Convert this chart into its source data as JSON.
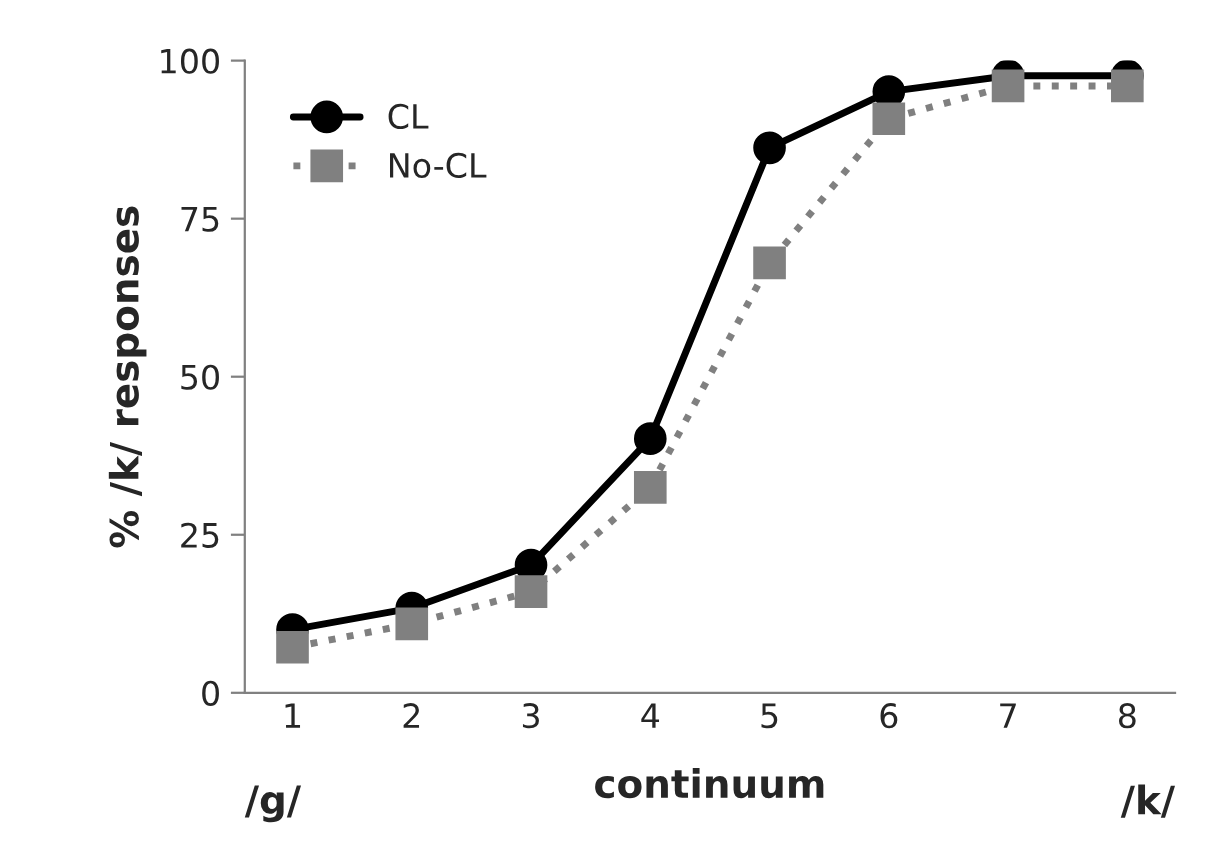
{
  "chart_data": {
    "type": "line",
    "ylabel": "% /k/ responses",
    "xlabel": "continuum",
    "annotations": [
      "/g/",
      "/k/"
    ],
    "categories": [
      "1",
      "2",
      "3",
      "4",
      "5",
      "6",
      "7",
      "8"
    ],
    "series": [
      {
        "name": "CL",
        "color": "#000000",
        "marker": "circle",
        "line_style": "solid",
        "values": [
          10,
          13.4,
          20.2,
          40.2,
          86.2,
          95.1,
          97.6,
          97.6
        ]
      },
      {
        "name": "No-CL",
        "color": "#808080",
        "marker": "square",
        "line_style": "dotted",
        "values": [
          7.2,
          10.9,
          16,
          32.5,
          68,
          90.8,
          96,
          96
        ]
      }
    ],
    "ylim": [
      0,
      100
    ],
    "yticks": [
      0,
      25,
      50,
      75,
      100
    ],
    "grid": false,
    "legend": "top left"
  }
}
